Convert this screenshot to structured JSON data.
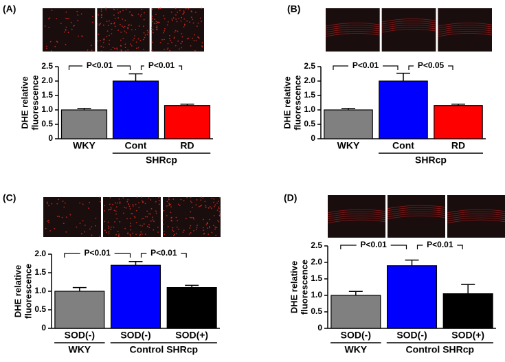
{
  "chart_data": [
    {
      "type": "bar",
      "panel": "(A)",
      "categories": [
        "WKY",
        "Cont",
        "RD"
      ],
      "values": [
        1.0,
        2.0,
        1.15
      ],
      "errors": [
        0.05,
        0.25,
        0.05
      ],
      "colors": [
        "#808080",
        "#0000ff",
        "#ff0000"
      ],
      "ylim": [
        0,
        2.5
      ],
      "yticks": [
        0,
        0.5,
        {
          "value": 1,
          "label": "1.0"
        },
        1.5,
        {
          "value": 2,
          "label": "2.0"
        },
        2.5
      ],
      "y_label": [
        "DHE relative",
        "fluorescence"
      ],
      "annotations": [
        "P<0.01",
        "P<0.01"
      ],
      "groups": [
        "SHRcp"
      ]
    },
    {
      "type": "bar",
      "panel": "(B)",
      "categories": [
        "WKY",
        "Cont",
        "RD"
      ],
      "values": [
        1.0,
        2.0,
        1.15
      ],
      "errors": [
        0.05,
        0.27,
        0.05
      ],
      "colors": [
        "#808080",
        "#0000ff",
        "#ff0000"
      ],
      "ylim": [
        0,
        2.5
      ],
      "yticks": [
        0,
        0.5,
        {
          "value": 1,
          "label": "1.0"
        },
        1.5,
        {
          "value": 2,
          "label": "2.0"
        },
        2.5
      ],
      "y_label": [
        "DHE relative",
        "fluorescence"
      ],
      "annotations": [
        "P<0.01",
        "P<0.05"
      ],
      "groups": [
        "SHRcp"
      ]
    },
    {
      "type": "bar",
      "panel": "(C)",
      "categories": [
        "SOD(-)",
        "SOD(-)",
        "SOD(+)"
      ],
      "values": [
        1.0,
        1.7,
        1.1
      ],
      "errors": [
        0.1,
        0.1,
        0.06
      ],
      "colors": [
        "#808080",
        "#0000ff",
        "#000000"
      ],
      "ylim": [
        0,
        2
      ],
      "yticks": [
        0,
        0.5,
        {
          "value": 1,
          "label": "1.0"
        },
        1.5,
        {
          "value": 2,
          "label": "2.0"
        }
      ],
      "y_label": [
        "DHE relative",
        "fluorescence"
      ],
      "annotations": [
        "P<0.01",
        "P<0.01"
      ],
      "groups": [
        "WKY",
        "Control SHRcp"
      ]
    },
    {
      "type": "bar",
      "panel": "(D)",
      "categories": [
        "SOD(-)",
        "SOD(-)",
        "SOD(+)"
      ],
      "values": [
        1.0,
        1.9,
        1.05
      ],
      "errors": [
        0.12,
        0.17,
        0.28
      ],
      "colors": [
        "#808080",
        "#0000ff",
        "#000000"
      ],
      "ylim": [
        0,
        2.5
      ],
      "yticks": [
        0,
        0.5,
        {
          "value": 1,
          "label": "1.0"
        },
        1.5,
        {
          "value": 2,
          "label": "2.0"
        },
        2.5
      ],
      "y_label": [
        "DHE relative",
        "fluorescence"
      ],
      "annotations": [
        "P<0.01",
        "P<0.01"
      ],
      "groups": [
        "WKY",
        "Control SHRcp"
      ]
    }
  ]
}
